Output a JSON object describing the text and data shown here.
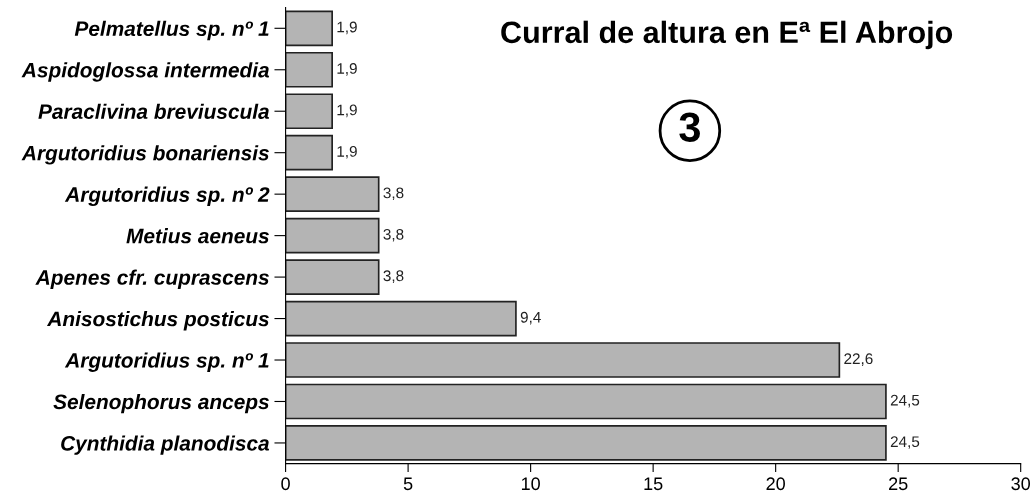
{
  "chart_data": {
    "type": "bar",
    "orientation": "horizontal",
    "title": "Curral de altura en Eª El Abrojo",
    "categories": [
      "Pelmatellus sp. nº 1",
      "Aspidoglossa intermedia",
      "Paraclivina breviuscula",
      "Argutoridius bonariensis",
      "Argutoridius sp. nº 2",
      "Metius aeneus",
      "Apenes cfr. cuprascens",
      "Anisostichus posticus",
      "Argutoridius sp. nº 1",
      "Selenophorus anceps",
      "Cynthidia planodisca"
    ],
    "values": [
      1.9,
      1.9,
      1.9,
      1.9,
      3.8,
      3.8,
      3.8,
      9.4,
      22.6,
      24.5,
      24.5
    ],
    "value_labels": [
      "1,9",
      "1,9",
      "1,9",
      "1,9",
      "3,8",
      "3,8",
      "3,8",
      "9,4",
      "22,6",
      "24,5",
      "24,5"
    ],
    "color": "#b4b4b4",
    "xlim": [
      0,
      30
    ],
    "xticks": [
      0,
      5,
      10,
      15,
      20,
      25,
      30
    ],
    "annotations": [
      "3"
    ],
    "grid": false
  }
}
